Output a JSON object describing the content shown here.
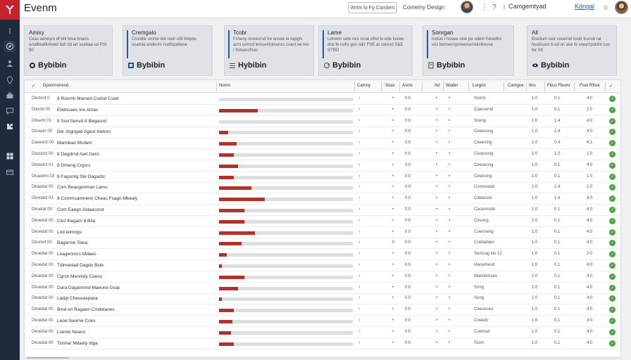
{
  "app": {
    "brand": "Evenm",
    "top_button": "Wrtm lo Fg Camben",
    "top_link": "Comemy Design",
    "user_label": "Camgemtyad",
    "account_link": "Kdngal",
    "help_glyph": "?",
    "star_glyph": "☆"
  },
  "colors": {
    "accent": "#b0322c",
    "rail": "#1f2a3a",
    "brand_red": "#c8202c",
    "ok": "#4aa33f"
  },
  "rail_icons": [
    "dots-icon",
    "compass-icon",
    "person-icon",
    "location-icon",
    "briefcase-icon",
    "chat-icon",
    "puzzle-icon",
    "grid-icon",
    "card-icon"
  ],
  "cards": [
    {
      "title": "Amixy",
      "desc": "Ceas aeheyrs df bhl bma hnans urodbeafkrmdet bsh lld art ssebaa ud PSI 90",
      "foot": "Bybibin",
      "icon": "globe-icon",
      "accent": false
    },
    {
      "title": "Cremgalo",
      "desc": "Crondlir unmw dot nodr ufd bblyde usamla andenrn rsolfopeiteoe",
      "foot": "Bybibin",
      "icon": "bar-icon",
      "accent": true
    },
    {
      "title": "Tcobr",
      "desc": "Fcheny moresrsd tre onsde te luyigfs acrs umnrd lemsentoinunss cvanl oe reo r frdsenoflsiis",
      "foot": "Hybibin",
      "icon": "list-icon",
      "accent": true
    },
    {
      "title": "Lame",
      "desc": "Ldrnem sete nes ocue ofnd to ede lusiee dce fe nolts gos sdrr FSE at ceresd S&E STRD",
      "foot": "Bybibin",
      "icon": "refresh-icon",
      "accent": true
    },
    {
      "title": "Sonrgan",
      "desc": "Iostuo i hooee cloe pe udem fslvedhs vos bensecnpsteeinerreiisltresse",
      "foot": "Bybibin",
      "icon": "doc-icon",
      "accent": true
    },
    {
      "title": "All",
      "desc": "Bsedum rosr vooemd tostlr trunsb rat fesalsuon b ed oc ase fe voeyrrpoldnt cuo fer 0X",
      "foot": "Bybibin",
      "icon": "eye-icon",
      "accent": false
    }
  ],
  "table": {
    "headers": {
      "check": "✓",
      "project": "Dpornnonend",
      "name": "Nomn",
      "category": "Camny",
      "scat": "Soas",
      "ats": "Asnts",
      "ad": "Ad",
      "worker": "Wader",
      "lurgno": "Lurgno",
      "camgn": "Camgne",
      "ilno": "Ilno",
      "fbumr": "Fbuo Fbumr",
      "rfrue": "Frue Rfrue",
      "ok": "✓"
    },
    "rows": [
      {
        "id": "Dkntsnt 0",
        "name": "8 Ronmh Mamed Codsd Csed",
        "progress": 0,
        "v1": "•",
        "v2": "0:0",
        "v3": "•",
        "v4": "•",
        "cat": "Scons",
        "n1": "1:0",
        "n2": "0.1",
        "n3": "4:0"
      },
      {
        "id": "Dilsmit 00",
        "name": "Ebdnoaes Ine Amas",
        "progress": 0.29,
        "v1": "•",
        "v2": "0:0",
        "v3": "•",
        "v4": "•",
        "cat": "Ciaesarnd",
        "n1": "1:0",
        "n2": "0.1",
        "n3": "2:0"
      },
      {
        "id": "Dilsemt 01",
        "name": "8 Sod Senvd 8 Begasod",
        "progress": 0,
        "v1": "•",
        "v2": "0:0",
        "v3": "•",
        "v4": "•",
        "cat": "Sceng",
        "n1": "1:0",
        "n2": "1.4",
        "n3": "4:0"
      },
      {
        "id": "Dkoedn 00",
        "name": "Dei Jngngad Agest Aletors",
        "progress": 0.07,
        "v1": "•",
        "v2": "0:0",
        "v3": "•",
        "v4": "•",
        "cat": "Ceeesong",
        "n1": "1:0",
        "n2": "1.4",
        "n3": "4:0"
      },
      {
        "id": "Daoetnd 00",
        "name": "Mamlead Mcdem",
        "progress": 0.13,
        "v1": "•",
        "v2": "0:0",
        "v3": "•",
        "v4": "•",
        "cat": "Ceeesing",
        "n1": "1:0",
        "n2": "0.4",
        "n3": "4:1"
      },
      {
        "id": "Daoodst 00",
        "name": "8 Dagdrnd Aarl Gero",
        "progress": 0.11,
        "v1": "•",
        "v2": "0:0",
        "v3": "•",
        "v4": "•",
        "cat": "Ceoesong",
        "n1": "1:0",
        "n2": "1.0",
        "n3": "1:0"
      },
      {
        "id": "Dkeedot 01",
        "name": "8 Dmeng Crgsrs",
        "progress": 0.14,
        "v1": "•",
        "v2": "0:0",
        "v3": "•",
        "v4": "•",
        "cat": "Ceeseong",
        "n1": "1:0",
        "n2": "0.1",
        "n3": "4:0"
      },
      {
        "id": "Dkaedmt 03",
        "name": "8 Fagsmlg Ste Dagadst",
        "progress": 0.11,
        "v1": "•",
        "v2": "0:0",
        "v3": "•",
        "v4": "•",
        "cat": "Ceeesing",
        "n1": "1:0",
        "n2": "0.1",
        "n3": "1:0"
      },
      {
        "id": "Dkaedat 00",
        "name": "Com Beasgenman Lamo",
        "progress": 0.24,
        "v1": "•",
        "v2": "0:0",
        "v3": "•",
        "v4": "•",
        "cat": "Csmenaad",
        "n1": "1:0",
        "n2": "1.4",
        "n3": "1:0"
      },
      {
        "id": "Dkondet 03",
        "name": "8 Commsamnenn Cheac Fsagn Mkealy",
        "progress": 0.34,
        "v1": "•",
        "v2": "0:0",
        "v3": "•",
        "v4": "•",
        "cat": "Cdeaoste",
        "n1": "1:0",
        "n2": "1.4",
        "n3": "4:0"
      },
      {
        "id": "Dkoetat 00",
        "name": "Com Eaegn Aldaacond",
        "progress": 0.19,
        "v1": "•",
        "v2": "0:0",
        "v3": "•",
        "v4": "•",
        "cat": "Cacesnodo",
        "n1": "1:0",
        "n2": "0.1",
        "n3": "4:0"
      },
      {
        "id": "Dkoedat 00",
        "name": "Cilcl Ihegam 8 Bita",
        "progress": 0.19,
        "v1": "•",
        "v2": "0:0",
        "v3": "•",
        "v4": "•",
        "cat": "Cesong",
        "n1": "1:0",
        "n2": "0.1",
        "n3": "4:0"
      },
      {
        "id": "Dkoedat 00",
        "name": "Lnd lelmngs",
        "progress": 0.27,
        "v1": "•",
        "v2": "0:0",
        "v3": "•",
        "v4": "•",
        "cat": "Coenneng",
        "n1": "1:0",
        "n2": "0.1",
        "n3": "4:0"
      },
      {
        "id": "Dkoneit 00",
        "name": "Bagerme Towa",
        "progress": 0.17,
        "v1": "0",
        "v2": "0:0",
        "v3": "•",
        "v4": "•",
        "cat": "Coetadaes",
        "n1": "1:0",
        "n2": "0.1",
        "n3": "4:0"
      },
      {
        "id": "Dkoedat 00",
        "name": "Leagenrocs Mdaeo",
        "progress": 0.06,
        "v1": "•",
        "v2": "0:0",
        "v3": "•",
        "v4": "•",
        "cat": "Semcag klo 12",
        "n1": "1:0",
        "n2": "0.1",
        "n3": "2:0"
      },
      {
        "id": "Dkoedat 00",
        "name": "Tdlmenlad Dagdo Bste",
        "progress": 0.02,
        "v1": "•",
        "v2": "0:0",
        "v3": "•",
        "v4": "•",
        "cat": "Macemesd",
        "n1": "1:0",
        "n2": "0.1",
        "n3": "4:0"
      },
      {
        "id": "Dkoedat 00",
        "name": "Cgrsh Menriidy Coeso",
        "progress": 0.19,
        "v1": "•",
        "v2": "0:0",
        "v3": "•",
        "v4": "•",
        "cat": "Maenemseo",
        "n1": "1:0",
        "n2": "0.1",
        "n3": "4:0"
      },
      {
        "id": "Dkoedat 00",
        "name": "Dara Dagannmd Maeone Goat",
        "progress": 0.14,
        "v1": "•",
        "v2": "0:0",
        "v3": "•",
        "v4": "•",
        "cat": "Sring",
        "n1": "1:0",
        "n2": "0.1",
        "n3": "4:0"
      },
      {
        "id": "Dkoedat 00",
        "name": "Ladgt Cheseaspasa",
        "progress": 0.02,
        "v1": "•",
        "v2": "0:0",
        "v3": "•",
        "v4": "•",
        "cat": "Sung",
        "n1": "1:0",
        "n2": "0.1",
        "n3": "4:0"
      },
      {
        "id": "Dkoedat 00",
        "name": "Bmd erl Ragaen Cmdelanes",
        "progress": 0.11,
        "v1": "•",
        "v2": "0:0",
        "v3": "•",
        "v4": "•",
        "cat": "Ceeseneo",
        "n1": "1:0",
        "n2": "0.1",
        "n3": "4:0"
      },
      {
        "id": "Dkoedat 00",
        "name": "Leoe Naorne Coes",
        "progress": 0.1,
        "v1": "•",
        "v2": "0:0",
        "v3": "•",
        "v4": "•",
        "cat": "Coeedc",
        "n1": "1:0",
        "n2": "0.1",
        "n3": "4:0"
      },
      {
        "id": "Dkoedat 00",
        "name": "Lsenle Neann",
        "progress": 0.09,
        "v1": "•",
        "v2": "0:0",
        "v3": "•",
        "v4": "•",
        "cat": "Coemsd",
        "n1": "1:0",
        "n2": "0.1",
        "n3": "4:0"
      },
      {
        "id": "Dkoedat 00",
        "name": "Tslshar Mdaaly Idga",
        "progress": 0.11,
        "v1": "•",
        "v2": "0:0",
        "v3": "•",
        "v4": "•",
        "cat": "Tosm",
        "n1": "1:0",
        "n2": "0.1",
        "n3": "4:0"
      }
    ]
  }
}
